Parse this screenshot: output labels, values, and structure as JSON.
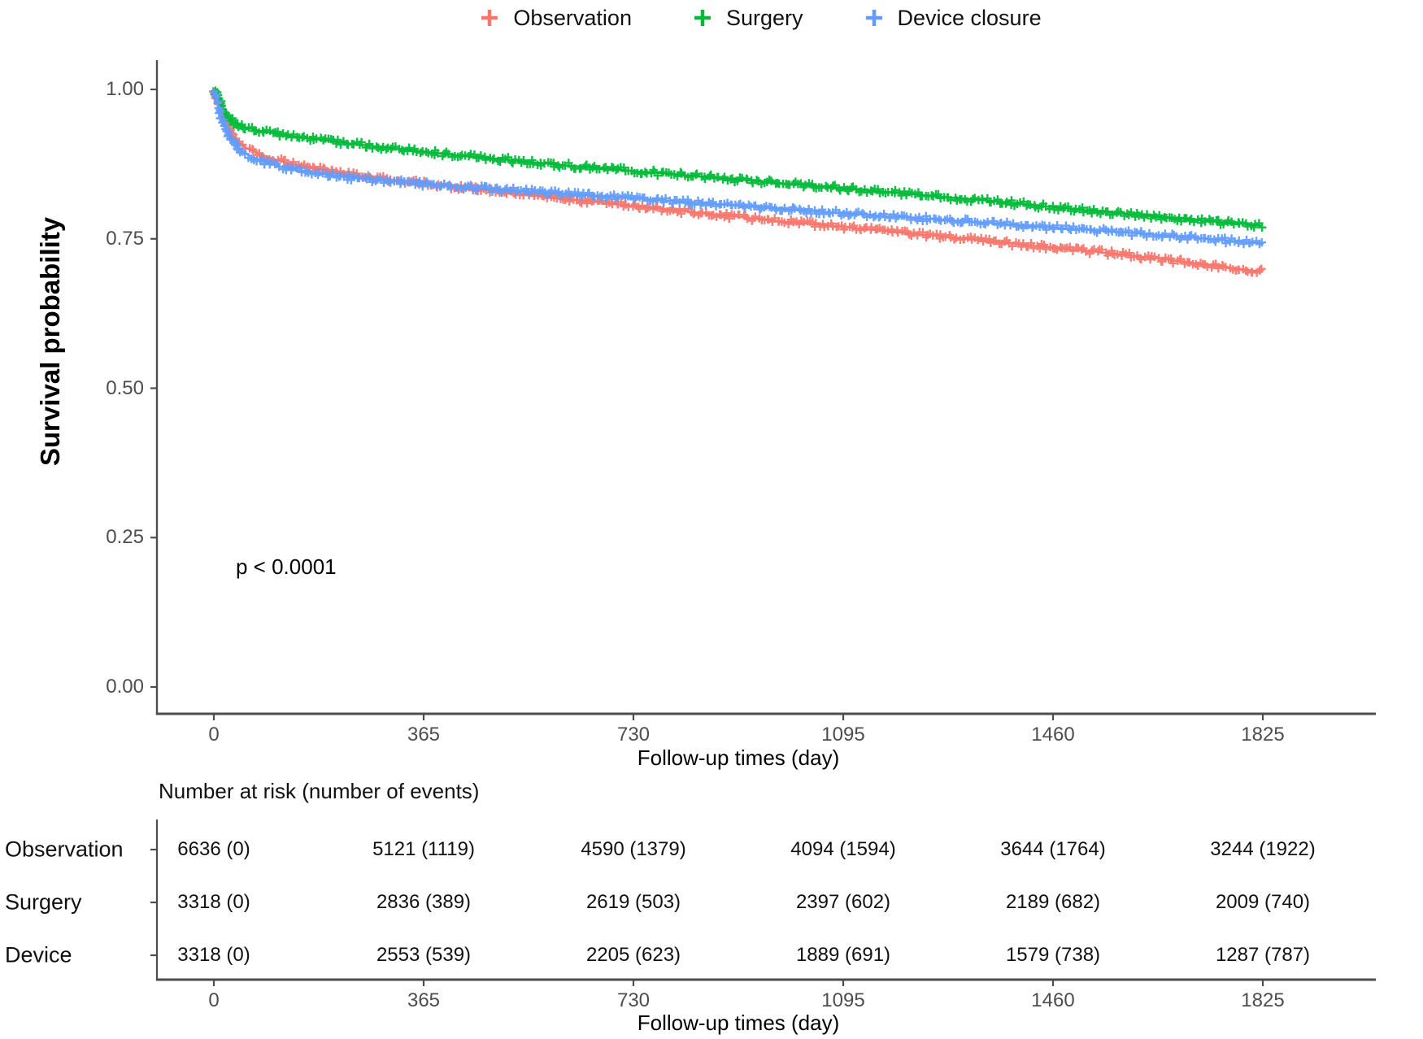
{
  "legend": {
    "items": [
      {
        "label": "Observation",
        "color": "#F8766D"
      },
      {
        "label": "Surgery",
        "color": "#00BA38"
      },
      {
        "label": "Device closure",
        "color": "#619CFF"
      }
    ]
  },
  "plot": {
    "y_axis_title": "Survival probability",
    "x_axis_title": "Follow-up times (day)",
    "p_value_text": "p < 0.0001",
    "y_tick_labels": [
      "1.00",
      "0.75",
      "0.50",
      "0.25",
      "0.00"
    ],
    "x_tick_labels": [
      "0",
      "365",
      "730",
      "1095",
      "1460",
      "1825"
    ]
  },
  "risk_table": {
    "title": "Number at risk (number of events)",
    "x_axis_title": "Follow-up times (day)",
    "x_tick_labels": [
      "0",
      "365",
      "730",
      "1095",
      "1460",
      "1825"
    ],
    "rows": [
      {
        "label": "Observation",
        "values": [
          "6636 (0)",
          "5121 (1119)",
          "4590 (1379)",
          "4094 (1594)",
          "3644 (1764)",
          "3244 (1922)"
        ]
      },
      {
        "label": "Surgery",
        "values": [
          "3318 (0)",
          "2836 (389)",
          "2619 (503)",
          "2397 (602)",
          "2189 (682)",
          "2009 (740)"
        ]
      },
      {
        "label": "Device",
        "values": [
          "3318 (0)",
          "2553 (539)",
          "2205 (623)",
          "1889 (691)",
          "1579 (738)",
          "1287 (787)"
        ]
      }
    ]
  },
  "chart_data": {
    "type": "line",
    "subtype": "kaplan-meier-step-curves-with-censor-marks",
    "title": "",
    "xlabel": "Follow-up times (day)",
    "ylabel": "Survival probability",
    "xlim": [
      0,
      1825
    ],
    "ylim": [
      0,
      1
    ],
    "x_ticks": [
      0,
      365,
      730,
      1095,
      1460,
      1825
    ],
    "y_ticks": [
      1.0,
      0.75,
      0.5,
      0.25,
      0.0
    ],
    "grid": false,
    "legend_position": "top",
    "annotation": "p < 0.0001",
    "axis_color": "#4d4d4d",
    "series": [
      {
        "name": "Observation",
        "color": "#F8766D",
        "points": [
          [
            0,
            1.0
          ],
          [
            5,
            0.985
          ],
          [
            12,
            0.965
          ],
          [
            20,
            0.945
          ],
          [
            30,
            0.925
          ],
          [
            45,
            0.91
          ],
          [
            60,
            0.9
          ],
          [
            90,
            0.888
          ],
          [
            120,
            0.879
          ],
          [
            150,
            0.872
          ],
          [
            200,
            0.864
          ],
          [
            250,
            0.856
          ],
          [
            300,
            0.85
          ],
          [
            365,
            0.843
          ],
          [
            430,
            0.836
          ],
          [
            500,
            0.829
          ],
          [
            600,
            0.818
          ],
          [
            700,
            0.808
          ],
          [
            800,
            0.798
          ],
          [
            900,
            0.788
          ],
          [
            1000,
            0.778
          ],
          [
            1095,
            0.77
          ],
          [
            1200,
            0.76
          ],
          [
            1300,
            0.751
          ],
          [
            1400,
            0.741
          ],
          [
            1460,
            0.735
          ],
          [
            1550,
            0.727
          ],
          [
            1650,
            0.716
          ],
          [
            1750,
            0.704
          ],
          [
            1825,
            0.695
          ]
        ]
      },
      {
        "name": "Surgery",
        "color": "#00BA38",
        "points": [
          [
            0,
            1.0
          ],
          [
            5,
            0.99
          ],
          [
            12,
            0.975
          ],
          [
            20,
            0.96
          ],
          [
            30,
            0.948
          ],
          [
            45,
            0.94
          ],
          [
            60,
            0.935
          ],
          [
            90,
            0.929
          ],
          [
            120,
            0.924
          ],
          [
            150,
            0.92
          ],
          [
            200,
            0.914
          ],
          [
            250,
            0.908
          ],
          [
            300,
            0.903
          ],
          [
            365,
            0.896
          ],
          [
            430,
            0.889
          ],
          [
            500,
            0.883
          ],
          [
            600,
            0.874
          ],
          [
            700,
            0.866
          ],
          [
            800,
            0.858
          ],
          [
            900,
            0.85
          ],
          [
            1000,
            0.842
          ],
          [
            1095,
            0.835
          ],
          [
            1200,
            0.826
          ],
          [
            1300,
            0.818
          ],
          [
            1400,
            0.809
          ],
          [
            1460,
            0.803
          ],
          [
            1550,
            0.795
          ],
          [
            1650,
            0.786
          ],
          [
            1750,
            0.778
          ],
          [
            1825,
            0.772
          ]
        ]
      },
      {
        "name": "Device closure",
        "color": "#619CFF",
        "points": [
          [
            0,
            1.0
          ],
          [
            5,
            0.98
          ],
          [
            12,
            0.955
          ],
          [
            20,
            0.935
          ],
          [
            30,
            0.915
          ],
          [
            45,
            0.9
          ],
          [
            60,
            0.89
          ],
          [
            90,
            0.878
          ],
          [
            120,
            0.87
          ],
          [
            150,
            0.864
          ],
          [
            200,
            0.857
          ],
          [
            250,
            0.851
          ],
          [
            300,
            0.847
          ],
          [
            365,
            0.842
          ],
          [
            430,
            0.837
          ],
          [
            500,
            0.832
          ],
          [
            600,
            0.826
          ],
          [
            700,
            0.82
          ],
          [
            800,
            0.813
          ],
          [
            900,
            0.806
          ],
          [
            1000,
            0.799
          ],
          [
            1095,
            0.793
          ],
          [
            1200,
            0.786
          ],
          [
            1300,
            0.78
          ],
          [
            1400,
            0.773
          ],
          [
            1460,
            0.769
          ],
          [
            1550,
            0.763
          ],
          [
            1650,
            0.756
          ],
          [
            1750,
            0.748
          ],
          [
            1825,
            0.742
          ]
        ]
      }
    ],
    "number_at_risk": {
      "times": [
        0,
        365,
        730,
        1095,
        1460,
        1825
      ],
      "rows": [
        {
          "name": "Observation",
          "at_risk": [
            6636,
            5121,
            4590,
            4094,
            3644,
            3244
          ],
          "events": [
            0,
            1119,
            1379,
            1594,
            1764,
            1922
          ]
        },
        {
          "name": "Surgery",
          "at_risk": [
            3318,
            2836,
            2619,
            2397,
            2189,
            2009
          ],
          "events": [
            0,
            389,
            503,
            602,
            682,
            740
          ]
        },
        {
          "name": "Device",
          "at_risk": [
            3318,
            2553,
            2205,
            1889,
            1579,
            1287
          ],
          "events": [
            0,
            539,
            623,
            691,
            738,
            787
          ]
        }
      ]
    }
  }
}
